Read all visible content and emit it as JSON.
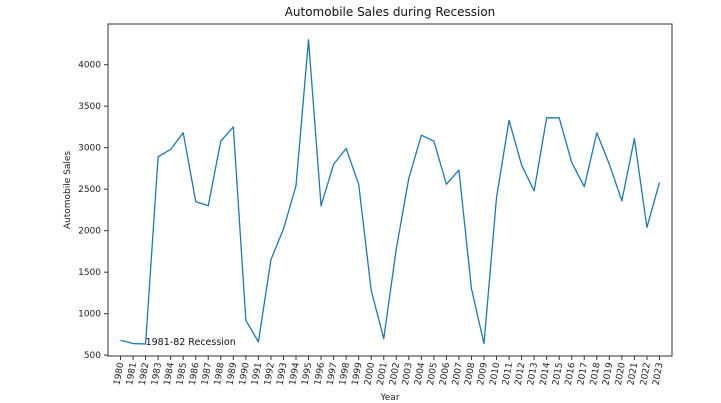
{
  "chart_data": {
    "type": "line",
    "title": "Automobile Sales during Recession",
    "xlabel": "Year",
    "ylabel": "Automobile Sales",
    "x": [
      1980,
      1981,
      1982,
      1983,
      1984,
      1985,
      1986,
      1987,
      1988,
      1989,
      1990,
      1991,
      1992,
      1993,
      1994,
      1995,
      1996,
      1997,
      1998,
      1999,
      2000,
      2001,
      2002,
      2003,
      2004,
      2005,
      2006,
      2007,
      2008,
      2009,
      2010,
      2011,
      2012,
      2013,
      2014,
      2015,
      2016,
      2017,
      2018,
      2019,
      2020,
      2021,
      2022,
      2023
    ],
    "series": [
      {
        "name": "",
        "color": "#1f77b4",
        "values": [
          680,
          640,
          635,
          2890,
          2980,
          3180,
          2350,
          2300,
          3080,
          3250,
          920,
          660,
          1650,
          2020,
          2540,
          4300,
          2300,
          2800,
          2990,
          2560,
          1280,
          700,
          1780,
          2630,
          3150,
          3080,
          2560,
          2730,
          1300,
          640,
          2400,
          3330,
          2790,
          2480,
          3360,
          3360,
          2820,
          2530,
          3180,
          2800,
          2360,
          3110,
          2040,
          2580
        ]
      }
    ],
    "yticks": [
      500,
      1000,
      1500,
      2000,
      2500,
      3000,
      3500,
      4000
    ],
    "ylim": [
      490,
      4490
    ],
    "xlim": [
      1979,
      2024
    ],
    "grid": false,
    "annotations": [
      {
        "text": "1981-82 Recession",
        "x": 1982,
        "y": 660
      }
    ]
  }
}
